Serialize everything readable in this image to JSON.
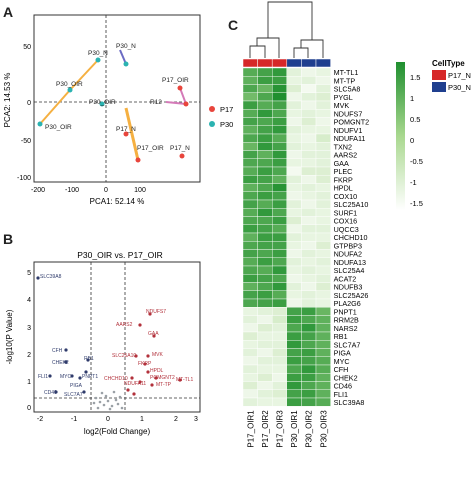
{
  "panels": {
    "a": "A",
    "b": "B",
    "c": "C"
  },
  "colors": {
    "p17": "#e8453c",
    "p30": "#2bb3b1",
    "p17_bar": "#d62728",
    "p30_bar": "#1f3f8f",
    "volcano_up": "#b2313b",
    "volcano_down": "#2f3b6b",
    "volcano_ns": "#9aa0a6"
  },
  "pca": {
    "xlabel": "PCA1: 52.14 %",
    "ylabel": "PCA2: 14.53 %",
    "xticks": [
      "-200",
      "-100",
      "0",
      "100"
    ],
    "yticks": [
      "50",
      "0",
      "-50",
      "-100"
    ],
    "legend": [
      {
        "label": "P17",
        "color_key": "p17"
      },
      {
        "label": "P30",
        "color_key": "p30"
      }
    ],
    "labels": [
      "P30_N",
      "P30_N",
      "P30_OIR",
      "P30_OIR",
      "P30_OIR",
      "R12",
      "P17_OIR",
      "P17_N",
      "P17_OIR",
      "P17_N",
      "P17_N",
      "P30_N"
    ]
  },
  "volcano": {
    "title": "P30_OIR vs. P17_OIR",
    "xlabel": "log2(Fold Change)",
    "ylabel": "-log10(P Value)",
    "xticks": [
      "-2",
      "-1",
      "0",
      "1",
      "2",
      "3"
    ],
    "yticks": [
      "0",
      "1",
      "2",
      "3",
      "4",
      "5"
    ],
    "genes_up": [
      "NDUFS7",
      "AARS2",
      "GAA",
      "SLC25A10",
      "MVK",
      "FKRP",
      "HPDL",
      "CHCHD10",
      "NDUFA11",
      "POMGNT2",
      "MT-TP",
      "MT-TL1"
    ],
    "genes_down": [
      "SLC39A8",
      "CFH",
      "CHEK2",
      "MYC",
      "FLI1",
      "CD46",
      "PIGA",
      "PNPT1",
      "SLC7A7",
      "RB1"
    ]
  },
  "heatmap": {
    "rows": [
      "MT-TL1",
      "MT-TP",
      "SLC5A8",
      "PYGL",
      "MVK",
      "NDUFS7",
      "POMGNT2",
      "NDUFV1",
      "NDUFA11",
      "TXN2",
      "AARS2",
      "GAA",
      "PLEC",
      "FKRP",
      "HPDL",
      "COX10",
      "SLC25A10",
      "SURF1",
      "COX16",
      "UQCC3",
      "CHCHD10",
      "GTPBP3",
      "NDUFA2",
      "NDUFA13",
      "SLC25A4",
      "ACAT2",
      "NDUFB3",
      "SLC25A26",
      "PLA2G6",
      "PNPT1",
      "RRM2B",
      "NARS2",
      "RB1",
      "SLC7A7",
      "PIGA",
      "MYC",
      "CFH",
      "CHEK2",
      "CD46",
      "FLI1",
      "SLC39A8"
    ],
    "columns": [
      "P17_OIR1",
      "P17_OIR2",
      "P17_OIR3",
      "P30_OIR1",
      "P30_OIR2",
      "P30_OIR3"
    ],
    "column_group": [
      "P17_N",
      "P17_N",
      "P17_N",
      "P30_N",
      "P30_N",
      "P30_N"
    ],
    "legend_title": "CellType",
    "legend_items": [
      {
        "label": "P17_N",
        "color_key": "p17_bar"
      },
      {
        "label": "P30_N",
        "color_key": "p30_bar"
      }
    ],
    "scale_ticks": [
      "1.5",
      "1",
      "0.5",
      "0",
      "-0.5",
      "-1",
      "-1.5"
    ],
    "values": [
      [
        0.9,
        1.1,
        1.3,
        -1.0,
        -1.2,
        -1.1
      ],
      [
        0.8,
        1.2,
        1.2,
        -1.1,
        -1.0,
        -1.2
      ],
      [
        1.0,
        0.7,
        1.4,
        -0.9,
        -1.3,
        -1.0
      ],
      [
        0.6,
        1.0,
        1.5,
        -1.2,
        -1.0,
        -0.9
      ],
      [
        1.2,
        0.9,
        1.1,
        -1.0,
        -1.2,
        -1.0
      ],
      [
        0.9,
        1.3,
        1.0,
        -1.1,
        -1.0,
        -1.1
      ],
      [
        1.1,
        1.0,
        1.2,
        -1.2,
        -0.9,
        -1.2
      ],
      [
        0.8,
        1.1,
        1.3,
        -1.0,
        -1.1,
        -1.1
      ],
      [
        1.0,
        1.2,
        0.9,
        -1.1,
        -1.2,
        -0.8
      ],
      [
        0.7,
        1.3,
        1.1,
        -1.0,
        -1.1,
        -1.0
      ],
      [
        1.1,
        0.8,
        1.3,
        -1.2,
        -1.0,
        -1.0
      ],
      [
        1.0,
        1.0,
        1.2,
        -1.1,
        -1.1,
        -1.0
      ],
      [
        0.9,
        1.2,
        1.0,
        -1.3,
        -0.9,
        -0.9
      ],
      [
        1.2,
        1.1,
        0.8,
        -1.0,
        -1.2,
        -0.9
      ],
      [
        0.8,
        1.0,
        1.4,
        -1.1,
        -1.0,
        -1.1
      ],
      [
        1.0,
        1.2,
        1.1,
        -1.2,
        -1.1,
        -1.0
      ],
      [
        1.1,
        0.9,
        1.2,
        -1.0,
        -1.2,
        -1.0
      ],
      [
        0.9,
        1.3,
        1.0,
        -1.1,
        -1.0,
        -1.1
      ],
      [
        1.0,
        1.0,
        1.2,
        -0.9,
        -1.2,
        -1.1
      ],
      [
        1.2,
        1.1,
        0.9,
        -1.2,
        -1.0,
        -1.0
      ],
      [
        0.8,
        1.2,
        1.2,
        -1.0,
        -1.1,
        -1.1
      ],
      [
        1.0,
        1.1,
        1.1,
        -1.1,
        -1.2,
        -0.9
      ],
      [
        1.1,
        1.0,
        1.2,
        -1.2,
        -1.0,
        -1.1
      ],
      [
        0.9,
        1.2,
        1.0,
        -1.0,
        -1.1,
        -1.0
      ],
      [
        1.0,
        0.9,
        1.3,
        -1.1,
        -1.0,
        -1.1
      ],
      [
        1.2,
        1.1,
        1.0,
        -1.2,
        -1.1,
        -1.0
      ],
      [
        0.8,
        1.0,
        1.3,
        -1.0,
        -1.2,
        -0.9
      ],
      [
        1.1,
        1.2,
        0.9,
        -1.1,
        -1.0,
        -1.1
      ],
      [
        1.0,
        1.1,
        1.2,
        -1.2,
        -1.0,
        -1.1
      ],
      [
        -1.1,
        -1.0,
        -0.9,
        1.1,
        1.2,
        0.7
      ],
      [
        -1.0,
        -1.2,
        -0.8,
        1.2,
        1.0,
        0.8
      ],
      [
        -1.2,
        -0.9,
        -1.0,
        1.0,
        1.3,
        0.8
      ],
      [
        -0.9,
        -1.1,
        -1.1,
        1.2,
        1.1,
        0.8
      ],
      [
        -1.1,
        -1.0,
        -1.0,
        1.3,
        1.0,
        0.8
      ],
      [
        -1.0,
        -1.2,
        -0.9,
        1.1,
        1.2,
        0.8
      ],
      [
        -1.2,
        -1.0,
        -1.0,
        1.2,
        1.1,
        0.9
      ],
      [
        -1.0,
        -1.1,
        -1.1,
        1.0,
        1.3,
        0.9
      ],
      [
        -1.1,
        -0.9,
        -1.2,
        1.2,
        1.2,
        0.8
      ],
      [
        -0.9,
        -1.2,
        -1.0,
        1.3,
        1.0,
        0.8
      ],
      [
        -1.2,
        -1.0,
        -0.9,
        1.1,
        1.2,
        0.8
      ],
      [
        -1.0,
        -1.1,
        -1.1,
        1.2,
        1.1,
        0.9
      ]
    ]
  }
}
